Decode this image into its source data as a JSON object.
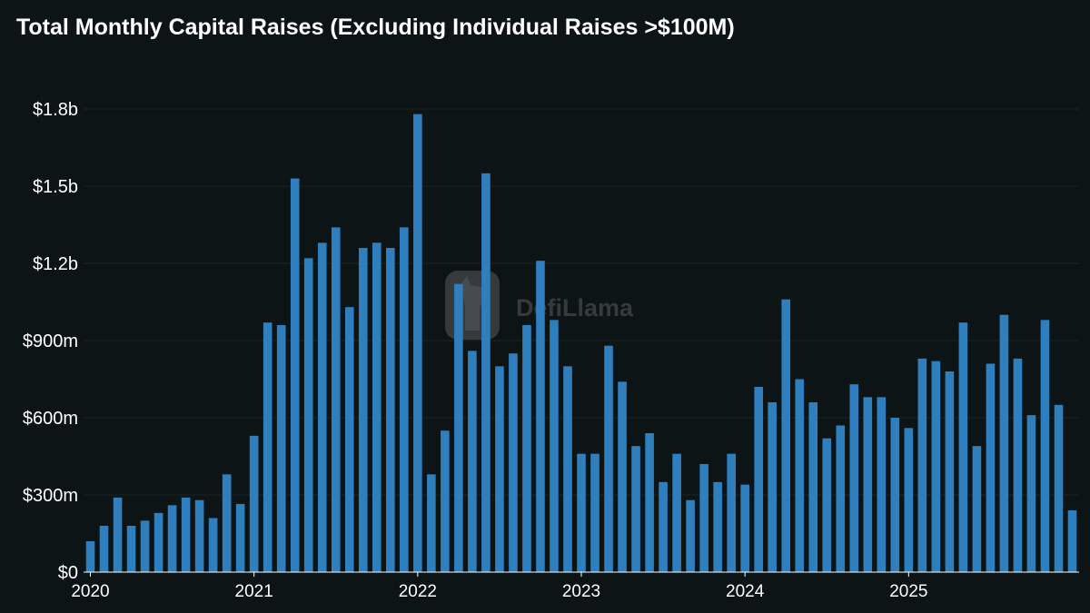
{
  "chart_data": {
    "type": "bar",
    "title": "Total Monthly Capital Raises (Excluding Individual Raises >$100M)",
    "watermark": "DefiLlama",
    "bar_color": "#2f7ebd",
    "background_color": "#0d1416",
    "grid_color": "#1c2427",
    "grid": true,
    "ylim": [
      0,
      1800000000
    ],
    "yticks": [
      {
        "value": 0,
        "label": "$0"
      },
      {
        "value": 300000000,
        "label": "$300m"
      },
      {
        "value": 600000000,
        "label": "$600m"
      },
      {
        "value": 900000000,
        "label": "$900m"
      },
      {
        "value": 1200000000,
        "label": "$1.2b"
      },
      {
        "value": 1500000000,
        "label": "$1.5b"
      },
      {
        "value": 1800000000,
        "label": "$1.8b"
      }
    ],
    "xticks": [
      {
        "index": 0,
        "label": "2020"
      },
      {
        "index": 12,
        "label": "2021"
      },
      {
        "index": 24,
        "label": "2022"
      },
      {
        "index": 36,
        "label": "2023"
      },
      {
        "index": 48,
        "label": "2024"
      },
      {
        "index": 60,
        "label": "2025"
      }
    ],
    "series": [
      {
        "start_month": "2019-12",
        "values": [
          120000000,
          180000000,
          290000000,
          180000000,
          200000000,
          230000000,
          260000000,
          290000000,
          280000000,
          210000000,
          380000000,
          265000000,
          530000000,
          970000000,
          960000000,
          1530000000,
          1220000000,
          1280000000,
          1340000000,
          1030000000,
          1260000000,
          1280000000,
          1260000000,
          1340000000,
          1780000000,
          380000000,
          550000000,
          1120000000,
          860000000,
          1550000000,
          800000000,
          850000000,
          960000000,
          1210000000,
          980000000,
          800000000,
          460000000,
          460000000,
          880000000,
          740000000,
          490000000,
          540000000,
          350000000,
          460000000,
          280000000,
          420000000,
          350000000,
          460000000,
          340000000,
          720000000,
          660000000,
          1060000000,
          750000000,
          660000000,
          520000000,
          570000000,
          730000000,
          680000000,
          680000000,
          600000000,
          560000000,
          830000000,
          820000000,
          780000000,
          970000000,
          490000000,
          810000000,
          1000000000,
          830000000,
          610000000,
          980000000,
          650000000,
          240000000
        ]
      }
    ]
  }
}
